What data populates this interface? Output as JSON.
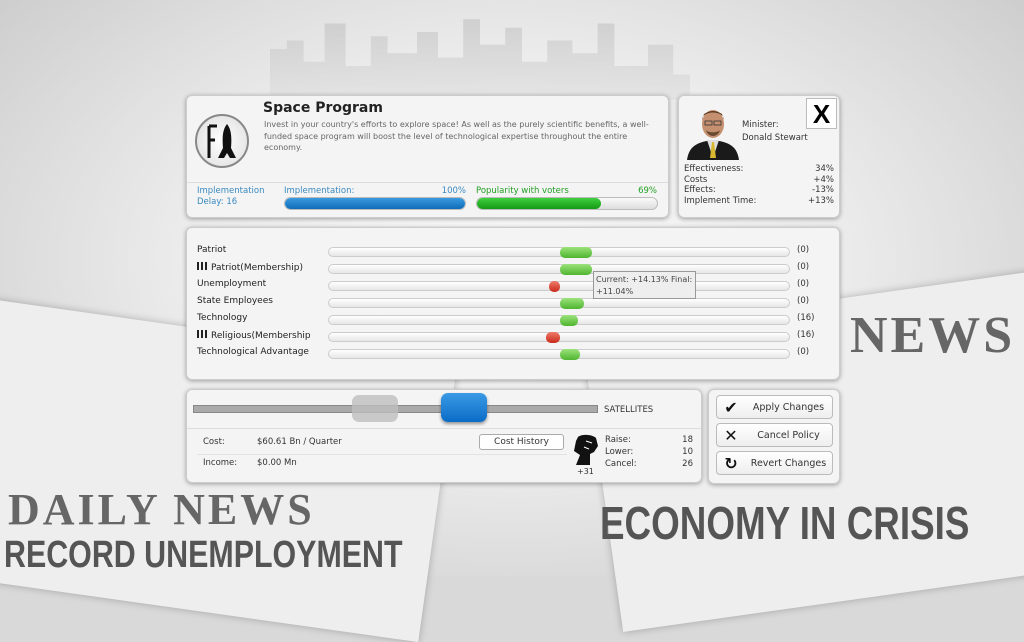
{
  "background": {
    "paper_left": {
      "masthead": "DAILY NEWS",
      "headline": "RECORD UNEMPLOYMENT"
    },
    "paper_right": {
      "masthead": "NEWS",
      "headline": "ECONOMY IN CRISIS"
    }
  },
  "policy": {
    "title": "Space Program",
    "icon": "rocket-icon",
    "description": "Invest in your country's efforts to explore space! As well as the purely scientific benefits, a well-funded space program will boost the level of technological expertise throughout the entire economy.",
    "delay_label": "Implementation",
    "delay_value": "Delay: 16",
    "implementation_label": "Implementation:",
    "implementation_value": "100%",
    "implementation_fraction": 1.0,
    "popularity_label": "Popularity with voters",
    "popularity_value": "69%",
    "popularity_fraction": 0.69,
    "colors": {
      "implementation": "#1a7ac8",
      "popularity": "#22b422",
      "info": "#3a8ac0"
    }
  },
  "minister": {
    "label": "Minister:",
    "name": "Donald Stewart",
    "close_label": "X",
    "stats": [
      {
        "label": "Effectiveness:",
        "value": "34%"
      },
      {
        "label": "Costs",
        "value": "+4%"
      },
      {
        "label": "Effects:",
        "value": "-13%"
      },
      {
        "label": "Implement Time:",
        "value": "+13%"
      }
    ]
  },
  "effects": [
    {
      "label": "Patriot",
      "membership": false,
      "effect": 14,
      "value": "(0)"
    },
    {
      "label": "Patriot(Membership)",
      "membership": true,
      "effect": 14,
      "value": "(0)"
    },
    {
      "label": "Unemployment",
      "membership": false,
      "effect": -5,
      "value": "(0)"
    },
    {
      "label": "State Employees",
      "membership": false,
      "effect": 10.5,
      "value": "(0)"
    },
    {
      "label": "Technology",
      "membership": false,
      "effect": 8,
      "value": "(16)"
    },
    {
      "label": "Religious(Membership",
      "membership": true,
      "effect": -6,
      "value": "(16)"
    },
    {
      "label": "Technological Advantage",
      "membership": false,
      "effect": 8.5,
      "value": "(0)"
    }
  ],
  "tooltip": {
    "line1": "Current: +14.13% Final:",
    "line2": "+11.04%"
  },
  "slider": {
    "label": "SATELLITES",
    "current_level": 0.45,
    "new_level": 0.67
  },
  "cost": {
    "cost_label": "Cost:",
    "cost_value": "$60.61 Bn / Quarter",
    "income_label": "Income:",
    "income_value": "$0.00 Mn",
    "history_button": "Cost History"
  },
  "votes": {
    "icon": "raised-fist-icon",
    "delta": "+31",
    "rows": [
      {
        "label": "Raise:",
        "value": "18"
      },
      {
        "label": "Lower:",
        "value": "10"
      },
      {
        "label": "Cancel:",
        "value": "26"
      }
    ]
  },
  "actions": [
    {
      "label": "Apply Changes",
      "icon": "✔"
    },
    {
      "label": "Cancel Policy",
      "icon": "✕"
    },
    {
      "label": "Revert Changes",
      "icon": "↻"
    }
  ]
}
